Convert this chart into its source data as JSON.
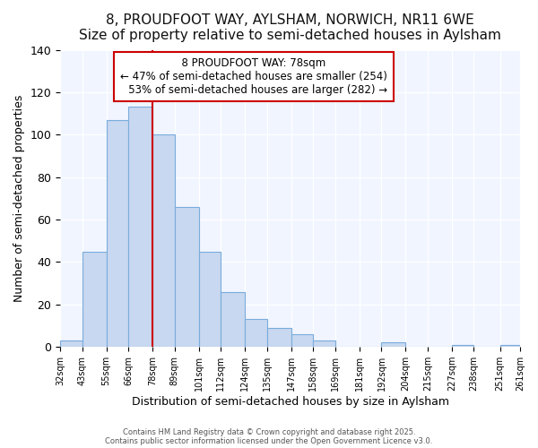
{
  "title": "8, PROUDFOOT WAY, AYLSHAM, NORWICH, NR11 6WE",
  "subtitle": "Size of property relative to semi-detached houses in Aylsham",
  "xlabel": "Distribution of semi-detached houses by size in Aylsham",
  "ylabel": "Number of semi-detached properties",
  "bin_edges": [
    32,
    43,
    55,
    66,
    78,
    89,
    101,
    112,
    124,
    135,
    147,
    158,
    169,
    181,
    192,
    204,
    215,
    227,
    238,
    251,
    261
  ],
  "bin_labels": [
    "32sqm",
    "43sqm",
    "55sqm",
    "66sqm",
    "78sqm",
    "89sqm",
    "101sqm",
    "112sqm",
    "124sqm",
    "135sqm",
    "147sqm",
    "158sqm",
    "169sqm",
    "181sqm",
    "192sqm",
    "204sqm",
    "215sqm",
    "227sqm",
    "238sqm",
    "251sqm",
    "261sqm"
  ],
  "counts": [
    3,
    45,
    107,
    113,
    100,
    66,
    45,
    26,
    13,
    9,
    6,
    3,
    0,
    0,
    2,
    0,
    0,
    1,
    0,
    1
  ],
  "property_size": 78,
  "property_label": "8 PROUDFOOT WAY: 78sqm",
  "smaller_pct": 47,
  "smaller_count": 254,
  "larger_pct": 53,
  "larger_count": 282,
  "bar_color": "#c8d8f0",
  "bar_edge_color": "#7aacdc",
  "line_color": "#cc0000",
  "annotation_box_color": "#ffffff",
  "annotation_box_edge": "#cc0000",
  "background_color": "#ffffff",
  "plot_bg_color": "#f0f5ff",
  "ylim": [
    0,
    140
  ],
  "title_fontsize": 11,
  "subtitle_fontsize": 9,
  "footer1": "Contains HM Land Registry data © Crown copyright and database right 2025.",
  "footer2": "Contains public sector information licensed under the Open Government Licence v3.0."
}
